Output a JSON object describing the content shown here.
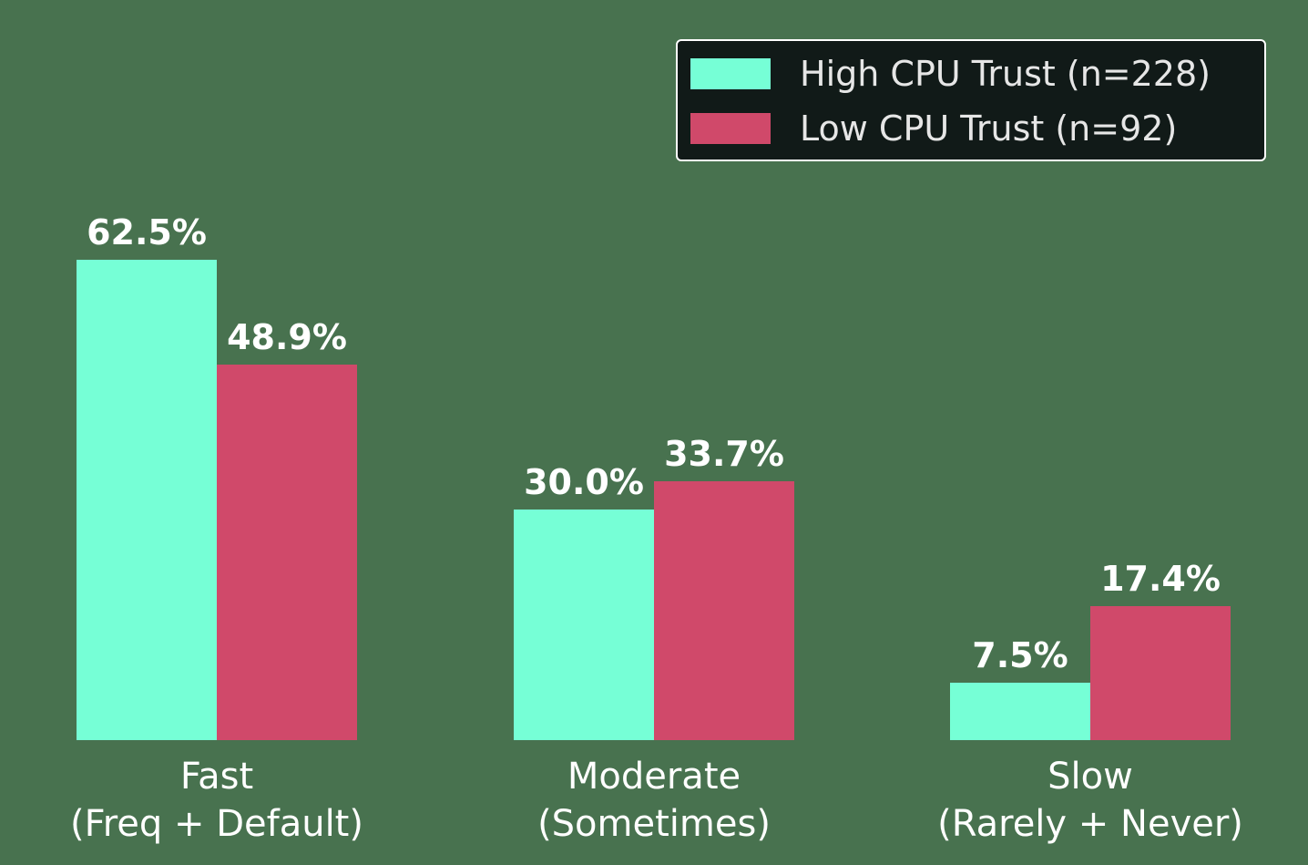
{
  "chart_data": {
    "type": "bar",
    "title": "",
    "xlabel": "",
    "ylabel": "",
    "categories": [
      "Fast\n(Freq + Default)",
      "Moderate\n(Sometimes)",
      "Slow\n(Rarely + Never)"
    ],
    "category_lines": [
      [
        "Fast",
        "(Freq + Default)"
      ],
      [
        "Moderate",
        "(Sometimes)"
      ],
      [
        "Slow",
        "(Rarely + Never)"
      ]
    ],
    "series": [
      {
        "name": "High CPU Trust (n=228)",
        "color": "#76ffd6",
        "values": [
          62.5,
          30.0,
          7.5
        ],
        "labels": [
          "62.5%",
          "30.0%",
          "7.5%"
        ]
      },
      {
        "name": "Low CPU Trust (n=92)",
        "color": "#d0496a",
        "values": [
          48.9,
          33.7,
          17.4
        ],
        "labels": [
          "48.9%",
          "33.7%",
          "17.4%"
        ]
      }
    ],
    "grid": false,
    "legend_position": "upper right",
    "axes_visible": false
  },
  "legend": {
    "items": [
      {
        "label": "High CPU Trust (n=228)",
        "color": "#76ffd6"
      },
      {
        "label": "Low CPU Trust (n=92)",
        "color": "#d0496a"
      }
    ]
  },
  "colors": {
    "background": "#48724f",
    "legend_bg": "#111a18"
  }
}
